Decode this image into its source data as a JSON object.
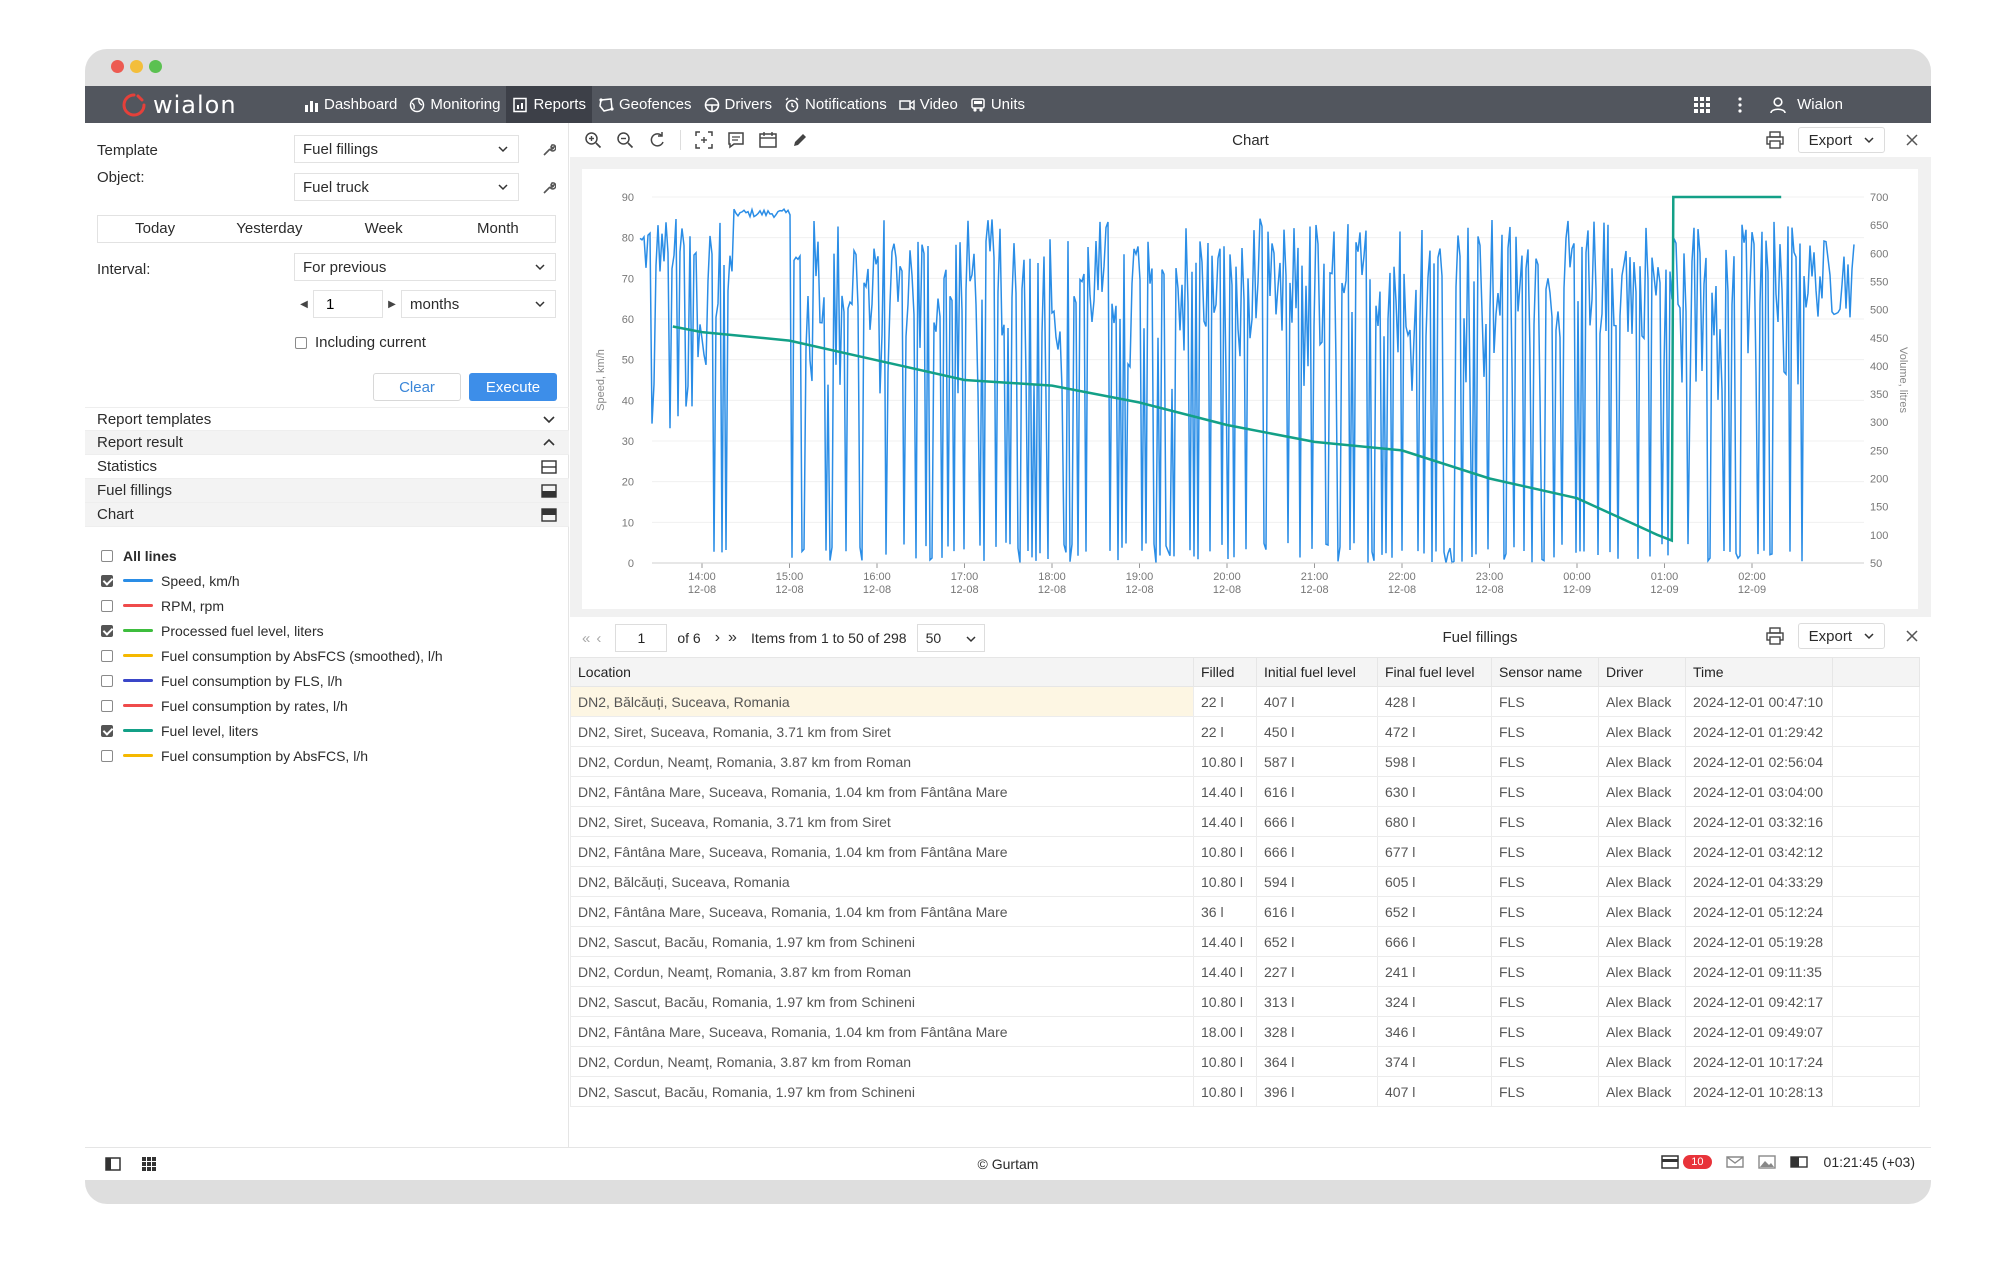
{
  "nav": {
    "logo": "wialon",
    "items": [
      {
        "label": "Dashboard",
        "icon": "bar-chart-icon"
      },
      {
        "label": "Monitoring",
        "icon": "globe-icon"
      },
      {
        "label": "Reports",
        "icon": "report-icon",
        "active": true
      },
      {
        "label": "Geofences",
        "icon": "geofence-icon"
      },
      {
        "label": "Drivers",
        "icon": "steering-wheel-icon"
      },
      {
        "label": "Notifications",
        "icon": "alarm-icon"
      },
      {
        "label": "Video",
        "icon": "video-icon"
      },
      {
        "label": "Units",
        "icon": "truck-icon"
      }
    ],
    "user": "Wialon"
  },
  "form": {
    "template_label": "Template",
    "template_value": "Fuel fillings",
    "object_label": "Object:",
    "object_value": "Fuel truck",
    "periods": [
      "Today",
      "Yesterday",
      "Week",
      "Month"
    ],
    "interval_label": "Interval:",
    "interval_value": "For previous",
    "interval_count": "1",
    "interval_unit": "months",
    "including_current": "Including current",
    "clear": "Clear",
    "execute": "Execute"
  },
  "sections": {
    "report_templates": "Report templates",
    "report_result": "Report result",
    "statistics": "Statistics",
    "fuel_fillings": "Fuel fillings",
    "chart": "Chart"
  },
  "lines": [
    {
      "label": "All lines",
      "checked": false,
      "color": "",
      "bold": true
    },
    {
      "label": "Speed, km/h",
      "checked": true,
      "color": "#2a8de6"
    },
    {
      "label": "RPM, rpm",
      "checked": false,
      "color": "#ef4b4b"
    },
    {
      "label": "Processed fuel level, liters",
      "checked": true,
      "color": "#3ebd3e"
    },
    {
      "label": "Fuel consumption by AbsFCS (smoothed), l/h",
      "checked": false,
      "color": "#f5b800"
    },
    {
      "label": "Fuel consumption by FLS, l/h",
      "checked": false,
      "color": "#3a46c8"
    },
    {
      "label": "Fuel consumption by rates, l/h",
      "checked": false,
      "color": "#ef4b4b"
    },
    {
      "label": "Fuel level, liters",
      "checked": true,
      "color": "#13a087"
    },
    {
      "label": "Fuel consumption by AbsFCS, l/h",
      "checked": false,
      "color": "#f5b800"
    }
  ],
  "chart_panel": {
    "title": "Chart",
    "export": "Export"
  },
  "chart_data": {
    "type": "line",
    "title": "",
    "ylabel": "Speed, km/h",
    "y2label": "Volume, litres",
    "ylim": [
      0,
      90
    ],
    "y2lim": [
      50,
      700
    ],
    "yticks": [
      "0",
      "10",
      "20",
      "30",
      "40",
      "50",
      "60",
      "70",
      "80",
      "90"
    ],
    "y2ticks": [
      "50",
      "100",
      "150",
      "200",
      "250",
      "300",
      "350",
      "400",
      "450",
      "500",
      "550",
      "600",
      "650",
      "700"
    ],
    "xticks": [
      {
        "time": "14:00",
        "date": "12-08"
      },
      {
        "time": "15:00",
        "date": "12-08"
      },
      {
        "time": "16:00",
        "date": "12-08"
      },
      {
        "time": "17:00",
        "date": "12-08"
      },
      {
        "time": "18:00",
        "date": "12-08"
      },
      {
        "time": "19:00",
        "date": "12-08"
      },
      {
        "time": "20:00",
        "date": "12-08"
      },
      {
        "time": "21:00",
        "date": "12-08"
      },
      {
        "time": "22:00",
        "date": "12-08"
      },
      {
        "time": "23:00",
        "date": "12-08"
      },
      {
        "time": "00:00",
        "date": "12-09"
      },
      {
        "time": "01:00",
        "date": "12-09"
      },
      {
        "time": "02:00",
        "date": "12-09"
      }
    ],
    "series": [
      {
        "name": "Speed, km/h",
        "axis": "left",
        "color": "#2a8de6",
        "note": "oscillating speed signal"
      },
      {
        "name": "Fuel level, liters",
        "axis": "right",
        "color": "#13a087",
        "x": [
          "13:40",
          "14:00",
          "15:00",
          "16:00",
          "17:00",
          "18:00",
          "19:00",
          "20:00",
          "21:00",
          "22:00",
          "23:00",
          "00:00",
          "00:55",
          "01:05",
          "01:06",
          "02:20"
        ],
        "values": [
          470,
          460,
          445,
          410,
          375,
          365,
          335,
          295,
          265,
          250,
          200,
          165,
          100,
          90,
          700,
          700
        ]
      }
    ]
  },
  "table": {
    "title": "Fuel fillings",
    "page": "1",
    "of": "of 6",
    "items_info": "Items from 1 to 50 of 298",
    "page_size": "50",
    "export": "Export",
    "columns": [
      "Location",
      "Filled",
      "Initial fuel level",
      "Final fuel level",
      "Sensor name",
      "Driver",
      "Time"
    ],
    "rows": [
      {
        "location": "DN2, Bălcăuți, Suceava, Romania",
        "filled": "22 l",
        "initial": "407 l",
        "final": "428 l",
        "sensor": "FLS",
        "driver": "Alex Black",
        "time": "2024-12-01 00:47:10",
        "time_hl": true
      },
      {
        "location": "DN2, Siret, Suceava, Romania, 3.71 km from Siret",
        "filled": "22 l",
        "initial": "450 l",
        "final": "472 l",
        "sensor": "FLS",
        "driver": "Alex Black",
        "time": "2024-12-01 01:29:42",
        "time_hl": true
      },
      {
        "location": "DN2, Cordun, Neamț, Romania, 3.87 km from Roman",
        "filled": "10.80 l",
        "initial": "587 l",
        "final": "598 l",
        "sensor": "FLS",
        "driver": "Alex Black",
        "time": "2024-12-01 02:56:04",
        "time_hl": true
      },
      {
        "location": "DN2, Fântâna Mare, Suceava, Romania, 1.04 km from Fântâna Mare",
        "filled": "14.40 l",
        "initial": "616 l",
        "final": "630 l",
        "sensor": "FLS",
        "driver": "Alex Black",
        "time": "2024-12-01 03:04:00",
        "time_hl": true
      },
      {
        "location": "DN2, Siret, Suceava, Romania, 3.71 km from Siret",
        "filled": "14.40 l",
        "initial": "666 l",
        "final": "680 l",
        "sensor": "FLS",
        "driver": "Alex Black",
        "time": "2024-12-01 03:32:16",
        "time_hl": false
      },
      {
        "location": "DN2, Fântâna Mare, Suceava, Romania, 1.04 km from Fântâna Mare",
        "filled": "10.80 l",
        "initial": "666 l",
        "final": "677 l",
        "sensor": "FLS",
        "driver": "Alex Black",
        "time": "2024-12-01 03:42:12",
        "time_hl": true
      },
      {
        "location": "DN2, Bălcăuți, Suceava, Romania",
        "filled": "10.80 l",
        "initial": "594 l",
        "final": "605 l",
        "sensor": "FLS",
        "driver": "Alex Black",
        "time": "2024-12-01 04:33:29",
        "time_hl": true
      },
      {
        "location": "DN2, Fântâna Mare, Suceava, Romania, 1.04 km from Fântâna Mare",
        "filled": "36 l",
        "initial": "616 l",
        "final": "652 l",
        "sensor": "FLS",
        "driver": "Alex Black",
        "time": "2024-12-01 05:12:24",
        "time_hl": true
      },
      {
        "location": "DN2, Sascut, Bacău, Romania, 1.97 km from Schineni",
        "filled": "14.40 l",
        "initial": "652 l",
        "final": "666 l",
        "sensor": "FLS",
        "driver": "Alex Black",
        "time": "2024-12-01 05:19:28",
        "time_hl": true
      },
      {
        "location": "DN2, Cordun, Neamț, Romania, 3.87 km from Roman",
        "filled": "14.40 l",
        "initial": "227 l",
        "final": "241 l",
        "sensor": "FLS",
        "driver": "Alex Black",
        "time": "2024-12-01 09:11:35",
        "time_hl": true
      },
      {
        "location": "DN2, Sascut, Bacău, Romania, 1.97 km from Schineni",
        "filled": "10.80 l",
        "initial": "313 l",
        "final": "324 l",
        "sensor": "FLS",
        "driver": "Alex Black",
        "time": "2024-12-01 09:42:17",
        "time_hl": true
      },
      {
        "location": "DN2, Fântâna Mare, Suceava, Romania, 1.04 km from Fântâna Mare",
        "filled": "18.00 l",
        "initial": "328 l",
        "final": "346 l",
        "sensor": "FLS",
        "driver": "Alex Black",
        "time": "2024-12-01 09:49:07",
        "time_hl": true
      },
      {
        "location": "DN2, Cordun, Neamț, Romania, 3.87 km from Roman",
        "filled": "10.80 l",
        "initial": "364 l",
        "final": "374 l",
        "sensor": "FLS",
        "driver": "Alex Black",
        "time": "2024-12-01 10:17:24",
        "time_hl": true
      },
      {
        "location": "DN2, Sascut, Bacău, Romania, 1.97 km from Schineni",
        "filled": "10.80 l",
        "initial": "396 l",
        "final": "407 l",
        "sensor": "FLS",
        "driver": "Alex Black",
        "time": "2024-12-01 10:28:13",
        "time_hl": true
      }
    ]
  },
  "status": {
    "copyright": "© Gurtam",
    "badge": "10",
    "time": "01:21:45 (+03)"
  }
}
